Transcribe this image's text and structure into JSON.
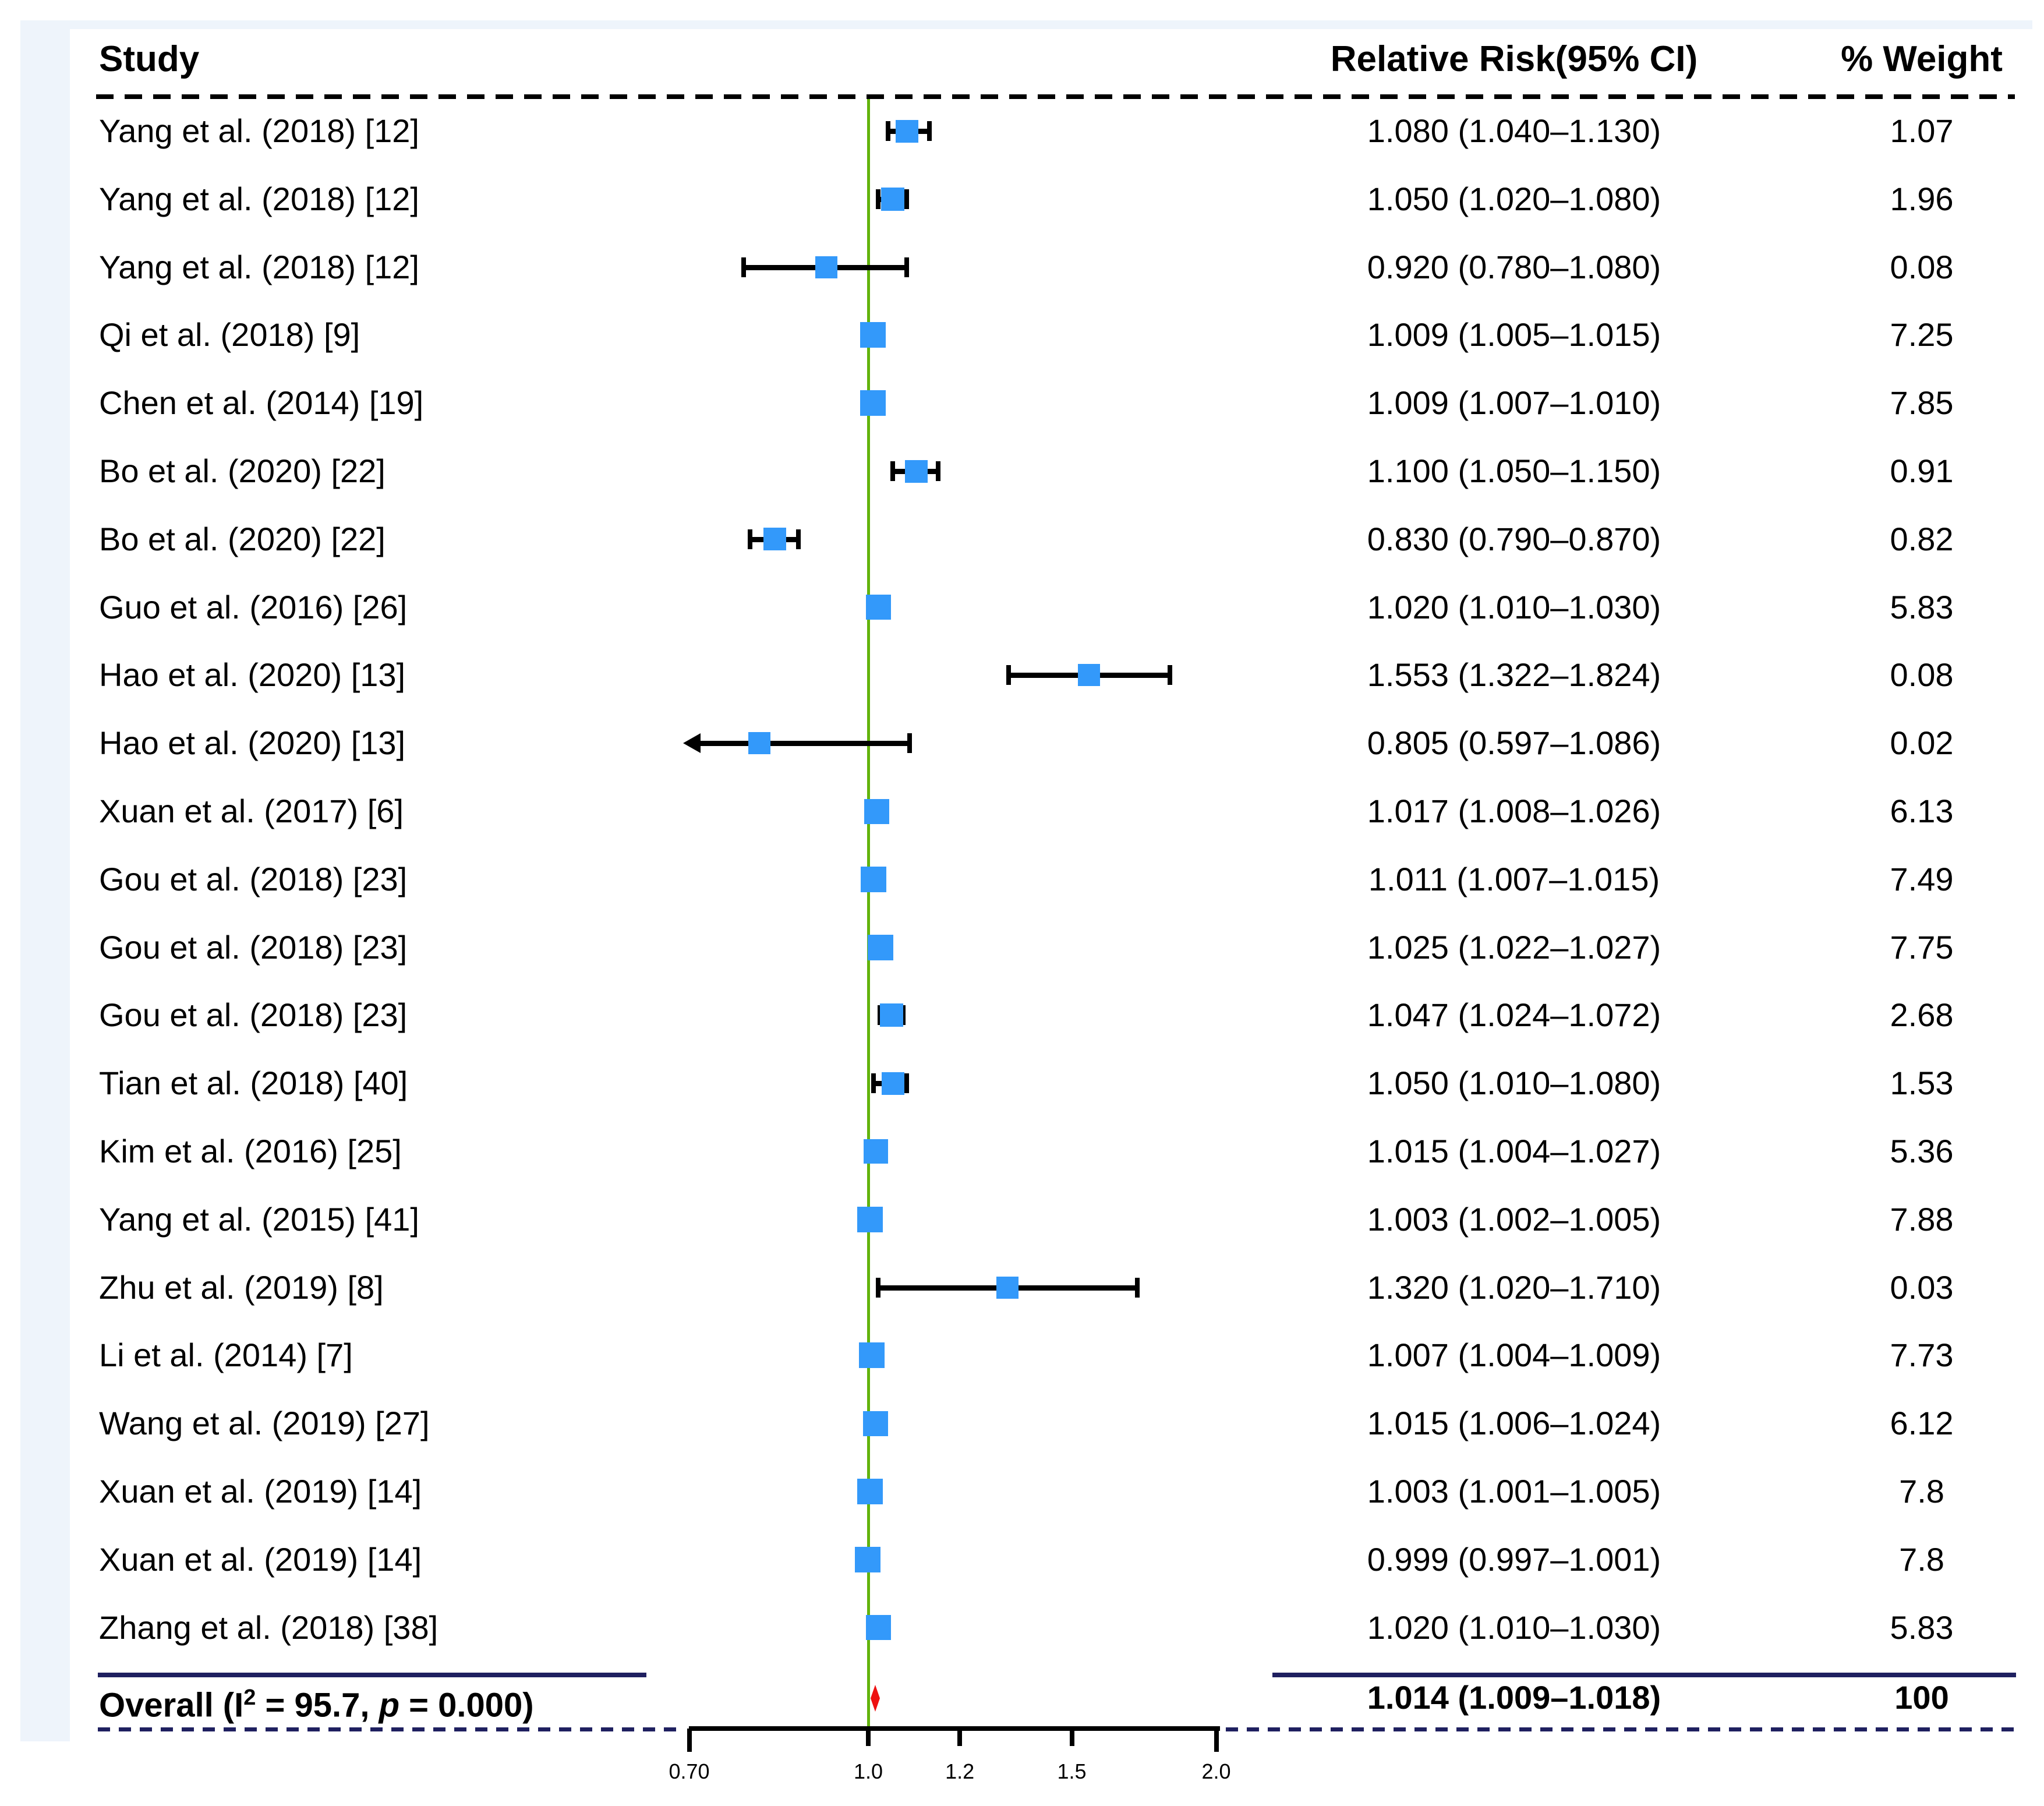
{
  "chart_data": {
    "type": "forest",
    "columns": {
      "study": "Study",
      "rr": "Relative Risk(95% CI)",
      "weight": "% Weight"
    },
    "axis": {
      "scale": "log",
      "xmin": 0.7,
      "xmax": 2.0,
      "ref_line": 1.0,
      "ticks": [
        0.7,
        1.0,
        1.2,
        1.5,
        2.0
      ],
      "tick_labels": [
        "0.70",
        "1.0",
        "1.2",
        "1.5",
        "2.0"
      ]
    },
    "studies": [
      {
        "label": "Yang et al. (2018) [12]",
        "rr": 1.08,
        "lo": 1.04,
        "hi": 1.13,
        "rr_text": "1.080 (1.040–1.130)",
        "weight": 1.07,
        "weight_text": "1.07"
      },
      {
        "label": "Yang et al. (2018) [12]",
        "rr": 1.05,
        "lo": 1.02,
        "hi": 1.08,
        "rr_text": "1.050 (1.020–1.080)",
        "weight": 1.96,
        "weight_text": "1.96"
      },
      {
        "label": "Yang et al. (2018) [12]",
        "rr": 0.92,
        "lo": 0.78,
        "hi": 1.08,
        "rr_text": "0.920 (0.780–1.080)",
        "weight": 0.08,
        "weight_text": "0.08"
      },
      {
        "label": "Qi et al. (2018) [9]",
        "rr": 1.009,
        "lo": 1.005,
        "hi": 1.015,
        "rr_text": "1.009 (1.005–1.015)",
        "weight": 7.25,
        "weight_text": "7.25"
      },
      {
        "label": "Chen et al. (2014) [19]",
        "rr": 1.009,
        "lo": 1.007,
        "hi": 1.01,
        "rr_text": "1.009 (1.007–1.010)",
        "weight": 7.85,
        "weight_text": "7.85"
      },
      {
        "label": "Bo et al. (2020) [22]",
        "rr": 1.1,
        "lo": 1.05,
        "hi": 1.15,
        "rr_text": "1.100 (1.050–1.150)",
        "weight": 0.91,
        "weight_text": "0.91"
      },
      {
        "label": "Bo et al. (2020) [22]",
        "rr": 0.83,
        "lo": 0.79,
        "hi": 0.87,
        "rr_text": "0.830 (0.790–0.870)",
        "weight": 0.82,
        "weight_text": "0.82"
      },
      {
        "label": "Guo et al. (2016) [26]",
        "rr": 1.02,
        "lo": 1.01,
        "hi": 1.03,
        "rr_text": "1.020 (1.010–1.030)",
        "weight": 5.83,
        "weight_text": "5.83"
      },
      {
        "label": "Hao et al. (2020) [13]",
        "rr": 1.553,
        "lo": 1.322,
        "hi": 1.824,
        "rr_text": "1.553 (1.322–1.824)",
        "weight": 0.08,
        "weight_text": "0.08"
      },
      {
        "label": "Hao et al. (2020) [13]",
        "rr": 0.805,
        "lo": 0.597,
        "hi": 1.086,
        "rr_text": "0.805 (0.597–1.086)",
        "weight": 0.02,
        "weight_text": "0.02",
        "arrow_lo": true
      },
      {
        "label": "Xuan et al. (2017) [6]",
        "rr": 1.017,
        "lo": 1.008,
        "hi": 1.026,
        "rr_text": "1.017 (1.008–1.026)",
        "weight": 6.13,
        "weight_text": "6.13"
      },
      {
        "label": "Gou et al. (2018) [23]",
        "rr": 1.011,
        "lo": 1.007,
        "hi": 1.015,
        "rr_text": "1.011 (1.007–1.015)",
        "weight": 7.49,
        "weight_text": "7.49"
      },
      {
        "label": "Gou et al. (2018) [23]",
        "rr": 1.025,
        "lo": 1.022,
        "hi": 1.027,
        "rr_text": "1.025 (1.022–1.027)",
        "weight": 7.75,
        "weight_text": "7.75"
      },
      {
        "label": "Gou et al. (2018) [23]",
        "rr": 1.047,
        "lo": 1.024,
        "hi": 1.072,
        "rr_text": "1.047 (1.024–1.072)",
        "weight": 2.68,
        "weight_text": "2.68"
      },
      {
        "label": "Tian et al. (2018) [40]",
        "rr": 1.05,
        "lo": 1.01,
        "hi": 1.08,
        "rr_text": "1.050 (1.010–1.080)",
        "weight": 1.53,
        "weight_text": "1.53"
      },
      {
        "label": "Kim et al. (2016) [25]",
        "rr": 1.015,
        "lo": 1.004,
        "hi": 1.027,
        "rr_text": "1.015 (1.004–1.027)",
        "weight": 5.36,
        "weight_text": "5.36"
      },
      {
        "label": "Yang et al. (2015) [41]",
        "rr": 1.003,
        "lo": 1.002,
        "hi": 1.005,
        "rr_text": "1.003 (1.002–1.005)",
        "weight": 7.88,
        "weight_text": "7.88"
      },
      {
        "label": "Zhu et al. (2019) [8]",
        "rr": 1.32,
        "lo": 1.02,
        "hi": 1.71,
        "rr_text": "1.320 (1.020–1.710)",
        "weight": 0.03,
        "weight_text": "0.03"
      },
      {
        "label": "Li et al. (2014) [7]",
        "rr": 1.007,
        "lo": 1.004,
        "hi": 1.009,
        "rr_text": "1.007 (1.004–1.009)",
        "weight": 7.73,
        "weight_text": "7.73"
      },
      {
        "label": "Wang et al. (2019) [27]",
        "rr": 1.015,
        "lo": 1.006,
        "hi": 1.024,
        "rr_text": "1.015 (1.006–1.024)",
        "weight": 6.12,
        "weight_text": "6.12"
      },
      {
        "label": "Xuan et al. (2019) [14]",
        "rr": 1.003,
        "lo": 1.001,
        "hi": 1.005,
        "rr_text": "1.003 (1.001–1.005)",
        "weight": 7.8,
        "weight_text": "7.8"
      },
      {
        "label": "Xuan et al. (2019) [14]",
        "rr": 0.999,
        "lo": 0.997,
        "hi": 1.001,
        "rr_text": "0.999 (0.997–1.001)",
        "weight": 7.8,
        "weight_text": "7.8"
      },
      {
        "label": "Zhang et al. (2018) [38]",
        "rr": 1.02,
        "lo": 1.01,
        "hi": 1.03,
        "rr_text": "1.020 (1.010–1.030)",
        "weight": 5.83,
        "weight_text": "5.83"
      }
    ],
    "overall": {
      "label_pre": "Overall (I",
      "label_sup": "2",
      "label_mid": " = 95.7, ",
      "label_p": "p",
      "label_post": " = 0.000)",
      "rr": 1.014,
      "lo": 1.009,
      "hi": 1.018,
      "rr_text": "1.014 (1.009–1.018)",
      "weight_text": "100"
    },
    "legend_position": "none",
    "grid": false
  },
  "colors": {
    "marker_blue": "#3399fa",
    "ref_line_green": "#62b30c",
    "overall_red": "#ee1111",
    "separator_navy": "#1f2060",
    "dash_black": "#000000",
    "page_margin_blue": "#eef4fb"
  }
}
